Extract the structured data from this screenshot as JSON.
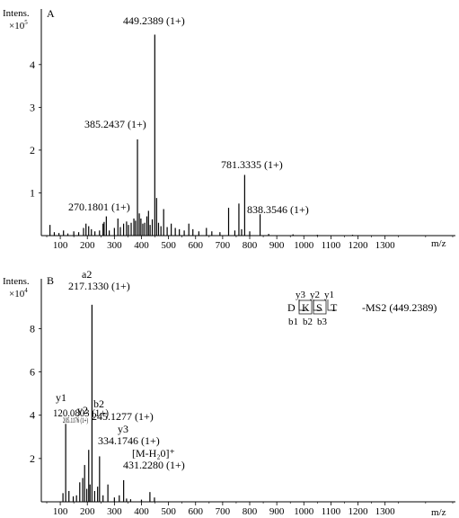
{
  "chart_data": [
    {
      "type": "bar",
      "panel_label": "A",
      "y_title_line1": "Intens.",
      "y_title_line2": "×10",
      "y_title_exp": "5",
      "xlabel": "m/z",
      "xlim": [
        30,
        1560
      ],
      "ylim": [
        0,
        5.3
      ],
      "x_ticks": [
        100,
        200,
        300,
        400,
        500,
        600,
        700,
        800,
        900,
        1000,
        1100,
        1200,
        1300
      ],
      "y_ticks": [
        1,
        2,
        3,
        4
      ],
      "peaks": [
        {
          "x": 449.2389,
          "y": 4.7,
          "label": "449.2389 (1+)"
        },
        {
          "x": 385.2437,
          "y": 2.25,
          "label": "385.2437 (1+)"
        },
        {
          "x": 781.3335,
          "y": 1.42,
          "label": "781.3335 (1+)"
        },
        {
          "x": 838.3546,
          "y": 0.5,
          "label": "838.3546 (1+)"
        },
        {
          "x": 270.1801,
          "y": 0.45,
          "label": "270.1801 (1+)"
        },
        {
          "x": 62,
          "y": 0.25
        },
        {
          "x": 78,
          "y": 0.08
        },
        {
          "x": 95,
          "y": 0.06
        },
        {
          "x": 112,
          "y": 0.12
        },
        {
          "x": 128,
          "y": 0.05
        },
        {
          "x": 150,
          "y": 0.1
        },
        {
          "x": 168,
          "y": 0.08
        },
        {
          "x": 186,
          "y": 0.18
        },
        {
          "x": 195,
          "y": 0.28
        },
        {
          "x": 205,
          "y": 0.22
        },
        {
          "x": 215,
          "y": 0.15
        },
        {
          "x": 228,
          "y": 0.1
        },
        {
          "x": 245,
          "y": 0.12
        },
        {
          "x": 258,
          "y": 0.28
        },
        {
          "x": 262,
          "y": 0.32
        },
        {
          "x": 281,
          "y": 0.12
        },
        {
          "x": 300,
          "y": 0.18
        },
        {
          "x": 313,
          "y": 0.4
        },
        {
          "x": 322,
          "y": 0.2
        },
        {
          "x": 334,
          "y": 0.28
        },
        {
          "x": 345,
          "y": 0.33
        },
        {
          "x": 352,
          "y": 0.25
        },
        {
          "x": 362,
          "y": 0.3
        },
        {
          "x": 372,
          "y": 0.4
        },
        {
          "x": 378,
          "y": 0.35
        },
        {
          "x": 392,
          "y": 0.52
        },
        {
          "x": 398,
          "y": 0.4
        },
        {
          "x": 405,
          "y": 0.28
        },
        {
          "x": 412,
          "y": 0.3
        },
        {
          "x": 420,
          "y": 0.45
        },
        {
          "x": 426,
          "y": 0.58
        },
        {
          "x": 432,
          "y": 0.25
        },
        {
          "x": 440,
          "y": 0.38
        },
        {
          "x": 456,
          "y": 0.88
        },
        {
          "x": 463,
          "y": 0.3
        },
        {
          "x": 472,
          "y": 0.22
        },
        {
          "x": 482,
          "y": 0.62
        },
        {
          "x": 495,
          "y": 0.2
        },
        {
          "x": 510,
          "y": 0.28
        },
        {
          "x": 525,
          "y": 0.18
        },
        {
          "x": 540,
          "y": 0.15
        },
        {
          "x": 558,
          "y": 0.12
        },
        {
          "x": 575,
          "y": 0.28
        },
        {
          "x": 590,
          "y": 0.15
        },
        {
          "x": 612,
          "y": 0.1
        },
        {
          "x": 640,
          "y": 0.18
        },
        {
          "x": 660,
          "y": 0.1
        },
        {
          "x": 690,
          "y": 0.08
        },
        {
          "x": 722,
          "y": 0.65
        },
        {
          "x": 745,
          "y": 0.12
        },
        {
          "x": 760,
          "y": 0.75
        },
        {
          "x": 770,
          "y": 0.15
        },
        {
          "x": 800,
          "y": 0.1
        },
        {
          "x": 870,
          "y": 0.04
        },
        {
          "x": 960,
          "y": 0.03
        },
        {
          "x": 1050,
          "y": 0.02
        },
        {
          "x": 1180,
          "y": 0.02
        }
      ]
    },
    {
      "type": "bar",
      "panel_label": "B",
      "y_title_line1": "Intens.",
      "y_title_line2": "×10",
      "y_title_exp": "4",
      "xlabel": "m/z",
      "xlim": [
        30,
        1560
      ],
      "ylim": [
        0,
        10.3
      ],
      "x_ticks": [
        100,
        200,
        300,
        400,
        500,
        600,
        700,
        800,
        900,
        1000,
        1100,
        1200,
        1300
      ],
      "y_ticks": [
        2,
        4,
        6,
        8
      ],
      "ms2_label": "-MS2 (449.2389)",
      "sequence": [
        "D",
        "K",
        "S",
        "T"
      ],
      "y_ions": [
        "y3",
        "y2",
        "y1"
      ],
      "b_ions": [
        "b1",
        "b2",
        "b3"
      ],
      "peaks": [
        {
          "x": 217.133,
          "y": 9.1,
          "ion": "a2",
          "label": "217.1330 (1+)"
        },
        {
          "x": 120.0803,
          "y": 3.6,
          "ion": "y1",
          "label": "120.0803 (1+)"
        },
        {
          "x": 205.1176,
          "y": 2.4,
          "ion": "y2",
          "label": "205.1176 (1+)"
        },
        {
          "x": 245.1277,
          "y": 2.1,
          "ion": "b2",
          "label": "245.1277 (1+)"
        },
        {
          "x": 334.1746,
          "y": 1.0,
          "ion": "y3",
          "label": "334.1746 (1+)"
        },
        {
          "x": 431.228,
          "y": 0.45,
          "ion": "[M-H₂0]⁺",
          "label": "431.2280 (1+)"
        },
        {
          "x": 110,
          "y": 0.4
        },
        {
          "x": 132,
          "y": 0.5
        },
        {
          "x": 148,
          "y": 0.25
        },
        {
          "x": 160,
          "y": 0.3
        },
        {
          "x": 172,
          "y": 0.9
        },
        {
          "x": 183,
          "y": 1.1
        },
        {
          "x": 190,
          "y": 1.7
        },
        {
          "x": 198,
          "y": 0.6
        },
        {
          "x": 210,
          "y": 0.8
        },
        {
          "x": 227,
          "y": 0.5
        },
        {
          "x": 238,
          "y": 0.7
        },
        {
          "x": 258,
          "y": 0.3
        },
        {
          "x": 276,
          "y": 0.8
        },
        {
          "x": 300,
          "y": 0.2
        },
        {
          "x": 318,
          "y": 0.3
        },
        {
          "x": 345,
          "y": 0.15
        },
        {
          "x": 360,
          "y": 0.12
        },
        {
          "x": 400,
          "y": 0.1
        },
        {
          "x": 448,
          "y": 0.2
        }
      ]
    }
  ]
}
